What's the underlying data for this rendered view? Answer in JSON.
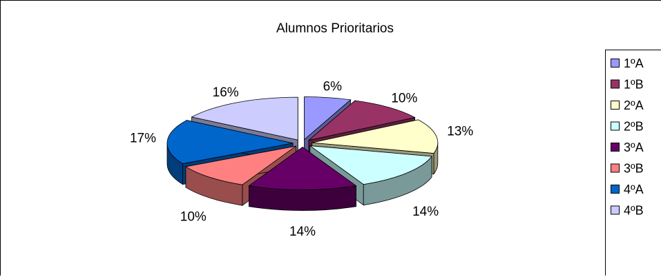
{
  "chart_data": {
    "type": "pie3d",
    "title": "Alumnos Prioritarios",
    "categories": [
      "1ºA",
      "1ºB",
      "2ºA",
      "2ºB",
      "3ºA",
      "3ºB",
      "4ºA",
      "4ºB"
    ],
    "values": [
      6,
      10,
      13,
      14,
      14,
      10,
      17,
      16
    ],
    "value_labels": [
      "6%",
      "10%",
      "13%",
      "14%",
      "14%",
      "10%",
      "17%",
      "16%"
    ],
    "colors": [
      "#9999ff",
      "#993366",
      "#ffffcc",
      "#ccffff",
      "#660066",
      "#ff8080",
      "#0066cc",
      "#ccccff"
    ],
    "legend": "right"
  }
}
